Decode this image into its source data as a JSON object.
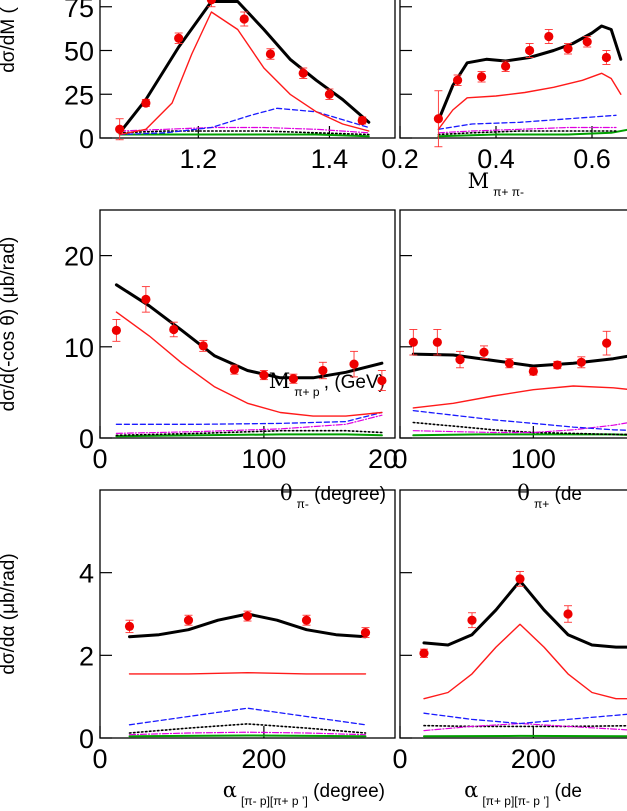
{
  "chart_data": [
    {
      "type": "line",
      "panel": "row1-left",
      "ylabel": "dσ/dM (",
      "xlabel": {
        "main": "M",
        "sub": "π+ p",
        "tail": "’,  (GeV)"
      },
      "xlim": [
        1.05,
        1.5
      ],
      "ylim": [
        0,
        80
      ],
      "xticks": [
        1.2,
        1.4
      ],
      "xtick_labels": [
        "1.2",
        "1.4"
      ],
      "yticks": [
        0,
        25,
        50,
        75
      ],
      "ytick_labels": [
        "0",
        "25",
        "50",
        "75"
      ],
      "points": {
        "x": [
          1.08,
          1.12,
          1.17,
          1.22,
          1.27,
          1.31,
          1.36,
          1.4,
          1.45
        ],
        "y": [
          5,
          20,
          57,
          79,
          68,
          48,
          37,
          25,
          10
        ],
        "err": [
          6,
          2,
          3,
          4,
          4,
          3,
          3,
          3,
          2
        ]
      },
      "curves": [
        {
          "style": "total",
          "x": [
            1.08,
            1.12,
            1.17,
            1.22,
            1.26,
            1.3,
            1.34,
            1.38,
            1.42,
            1.46
          ],
          "y": [
            3,
            22,
            52,
            78,
            78,
            62,
            45,
            33,
            22,
            9
          ]
        },
        {
          "style": "red",
          "x": [
            1.08,
            1.12,
            1.16,
            1.19,
            1.22,
            1.26,
            1.3,
            1.34,
            1.38,
            1.42,
            1.46
          ],
          "y": [
            2,
            5,
            20,
            48,
            72,
            62,
            40,
            25,
            15,
            8,
            4
          ]
        },
        {
          "style": "blue-dash",
          "x": [
            1.08,
            1.15,
            1.22,
            1.28,
            1.32,
            1.38,
            1.46
          ],
          "y": [
            2,
            3,
            6,
            13,
            17,
            15,
            6
          ]
        },
        {
          "style": "magenta-dashdot",
          "x": [
            1.08,
            1.15,
            1.22,
            1.3,
            1.38,
            1.46
          ],
          "y": [
            4,
            5,
            6,
            6,
            5,
            3
          ]
        },
        {
          "style": "black-dot",
          "x": [
            1.08,
            1.15,
            1.22,
            1.3,
            1.38,
            1.46
          ],
          "y": [
            3,
            4,
            4,
            4,
            3,
            2
          ]
        },
        {
          "style": "green",
          "x": [
            1.08,
            1.15,
            1.22,
            1.3,
            1.38,
            1.46
          ],
          "y": [
            2,
            2,
            2,
            2,
            2,
            1
          ]
        }
      ]
    },
    {
      "type": "line",
      "panel": "row1-right",
      "xlabel": {
        "main": "M",
        "sub": "π+ π-",
        "tail": ""
      },
      "xlim": [
        0.2,
        0.7
      ],
      "ylim": [
        0,
        80
      ],
      "xticks": [
        0.2,
        0.4,
        0.6
      ],
      "xtick_labels": [
        "0.2",
        "0.4",
        "0.6"
      ],
      "yticks": [
        0,
        25,
        50,
        75
      ],
      "points": {
        "x": [
          0.28,
          0.32,
          0.37,
          0.42,
          0.47,
          0.51,
          0.55,
          0.59,
          0.63
        ],
        "y": [
          11,
          33,
          35,
          41,
          50,
          58,
          51,
          55,
          46
        ],
        "err": [
          16,
          3,
          3,
          3,
          4,
          4,
          3,
          3,
          4
        ]
      },
      "curves": [
        {
          "style": "total",
          "x": [
            0.28,
            0.31,
            0.34,
            0.38,
            0.42,
            0.47,
            0.52,
            0.56,
            0.6,
            0.62,
            0.64,
            0.66
          ],
          "y": [
            10,
            30,
            43,
            45,
            44,
            46,
            50,
            54,
            60,
            64,
            62,
            45
          ]
        },
        {
          "style": "red",
          "x": [
            0.28,
            0.31,
            0.34,
            0.4,
            0.46,
            0.52,
            0.58,
            0.62,
            0.64,
            0.66
          ],
          "y": [
            5,
            16,
            23,
            24,
            26,
            29,
            33,
            37,
            34,
            25
          ]
        },
        {
          "style": "blue-dash",
          "x": [
            0.28,
            0.35,
            0.45,
            0.55,
            0.65
          ],
          "y": [
            5,
            8,
            9,
            11,
            13
          ]
        },
        {
          "style": "magenta-dashdot",
          "x": [
            0.28,
            0.35,
            0.45,
            0.55,
            0.65
          ],
          "y": [
            3,
            4,
            5,
            6,
            6
          ]
        },
        {
          "style": "black-dot",
          "x": [
            0.28,
            0.35,
            0.45,
            0.55,
            0.65
          ],
          "y": [
            2,
            3,
            4,
            4,
            4
          ]
        },
        {
          "style": "green",
          "x": [
            0.28,
            0.4,
            0.55,
            0.64,
            0.68
          ],
          "y": [
            1,
            2,
            2,
            3,
            5
          ]
        }
      ]
    },
    {
      "type": "line",
      "panel": "row2-left",
      "ylabel": "dσ/d(-cos θ) (μb/rad)",
      "xlabel": {
        "main": "θ",
        "sub": "π-",
        "tail": " (degree)"
      },
      "xlim": [
        0,
        180
      ],
      "ylim": [
        0,
        25
      ],
      "xticks": [
        0,
        100
      ],
      "xtick_labels": [
        "0",
        "100"
      ],
      "extra_xlabel": "20",
      "yticks": [
        0,
        10,
        20
      ],
      "ytick_labels": [
        "0",
        "10",
        "20"
      ],
      "points": {
        "x": [
          10,
          28,
          45,
          63,
          82,
          100,
          118,
          136,
          155,
          172
        ],
        "y": [
          11.8,
          15.2,
          11.9,
          10.1,
          7.5,
          6.9,
          6.5,
          7.4,
          8.1,
          6.3
        ],
        "err": [
          1.2,
          1.4,
          0.8,
          0.6,
          0.5,
          0.5,
          0.5,
          0.9,
          1.4,
          1.1
        ]
      },
      "curves": [
        {
          "style": "total",
          "x": [
            10,
            30,
            50,
            70,
            90,
            110,
            130,
            150,
            172
          ],
          "y": [
            16.8,
            14.5,
            11.8,
            9.0,
            7.4,
            6.6,
            6.6,
            7.2,
            8.2
          ]
        },
        {
          "style": "red",
          "x": [
            10,
            30,
            50,
            70,
            90,
            110,
            130,
            150,
            172
          ],
          "y": [
            13.8,
            11.2,
            8.2,
            5.6,
            3.8,
            2.8,
            2.4,
            2.4,
            2.8
          ]
        },
        {
          "style": "blue-dash",
          "x": [
            10,
            60,
            110,
            150,
            172
          ],
          "y": [
            1.5,
            1.5,
            1.6,
            1.8,
            2.8
          ]
        },
        {
          "style": "magenta-dashdot",
          "x": [
            10,
            60,
            110,
            150,
            172
          ],
          "y": [
            0.5,
            0.7,
            1.0,
            1.5,
            2.5
          ]
        },
        {
          "style": "black-dot",
          "x": [
            10,
            60,
            110,
            150,
            172
          ],
          "y": [
            0.3,
            0.5,
            0.8,
            0.8,
            0.6
          ]
        },
        {
          "style": "green",
          "x": [
            10,
            60,
            110,
            150,
            172
          ],
          "y": [
            0.2,
            0.3,
            0.4,
            0.4,
            0.3
          ]
        }
      ]
    },
    {
      "type": "line",
      "panel": "row2-right",
      "xlabel": {
        "main": "θ",
        "sub": "π+",
        "tail": " (de"
      },
      "xlim": [
        0,
        180
      ],
      "ylim": [
        0,
        25
      ],
      "xticks": [
        0,
        100
      ],
      "xtick_labels": [
        "0",
        "100"
      ],
      "yticks": [
        0,
        10,
        20
      ],
      "points": {
        "x": [
          10,
          28,
          45,
          63,
          82,
          100,
          118,
          136,
          155
        ],
        "y": [
          10.5,
          10.5,
          8.6,
          9.4,
          8.2,
          7.3,
          8.0,
          8.3,
          10.4
        ],
        "err": [
          1.4,
          1.4,
          0.9,
          0.7,
          0.5,
          0.4,
          0.4,
          0.6,
          1.3
        ]
      },
      "curves": [
        {
          "style": "total",
          "x": [
            10,
            40,
            70,
            100,
            130,
            160,
            180
          ],
          "y": [
            9.2,
            9.1,
            8.5,
            7.9,
            8.2,
            8.7,
            9.2
          ]
        },
        {
          "style": "red",
          "x": [
            10,
            40,
            70,
            100,
            130,
            160,
            180
          ],
          "y": [
            3.3,
            3.8,
            4.6,
            5.3,
            5.7,
            5.5,
            5.2
          ]
        },
        {
          "style": "blue-dash",
          "x": [
            10,
            40,
            70,
            100,
            130,
            160,
            180
          ],
          "y": [
            3.0,
            2.5,
            2.0,
            1.6,
            1.2,
            0.9,
            0.8
          ]
        },
        {
          "style": "black-dot",
          "x": [
            10,
            40,
            70,
            100,
            130,
            160,
            180
          ],
          "y": [
            1.7,
            1.3,
            0.9,
            0.6,
            0.5,
            0.4,
            0.4
          ]
        },
        {
          "style": "magenta-dashdot",
          "x": [
            10,
            40,
            70,
            100,
            130,
            160,
            180
          ],
          "y": [
            0.8,
            0.7,
            0.6,
            0.6,
            0.9,
            1.4,
            1.9
          ]
        },
        {
          "style": "green",
          "x": [
            10,
            60,
            110,
            160,
            180
          ],
          "y": [
            0.3,
            0.4,
            0.4,
            0.4,
            0.3
          ]
        }
      ]
    },
    {
      "type": "line",
      "panel": "row3-left",
      "ylabel": "dσ/dα (μb/rad)",
      "xlabel": {
        "main": "α",
        "sub": "[π- p][π+ p ’]",
        "tail": " (degree)"
      },
      "xlim": [
        0,
        360
      ],
      "ylim": [
        0,
        6
      ],
      "xticks": [
        0,
        200
      ],
      "xtick_labels": [
        "0",
        "200"
      ],
      "yticks": [
        0,
        2,
        4
      ],
      "ytick_labels": [
        "0",
        "2",
        "4"
      ],
      "points": {
        "x": [
          36,
          108,
          180,
          252,
          324
        ],
        "y": [
          2.7,
          2.85,
          2.95,
          2.85,
          2.55
        ],
        "err": [
          0.15,
          0.12,
          0.12,
          0.12,
          0.12
        ]
      },
      "curves": [
        {
          "style": "total",
          "x": [
            36,
            72,
            108,
            144,
            180,
            216,
            252,
            288,
            324
          ],
          "y": [
            2.45,
            2.5,
            2.62,
            2.85,
            3.0,
            2.85,
            2.62,
            2.5,
            2.45
          ]
        },
        {
          "style": "red",
          "x": [
            36,
            108,
            180,
            252,
            324
          ],
          "y": [
            1.55,
            1.55,
            1.58,
            1.55,
            1.55
          ]
        },
        {
          "style": "blue-dash",
          "x": [
            36,
            108,
            180,
            252,
            324
          ],
          "y": [
            0.32,
            0.52,
            0.72,
            0.52,
            0.32
          ]
        },
        {
          "style": "black-dot",
          "x": [
            36,
            108,
            180,
            252,
            324
          ],
          "y": [
            0.12,
            0.24,
            0.34,
            0.24,
            0.12
          ]
        },
        {
          "style": "magenta-dashdot",
          "x": [
            36,
            108,
            180,
            252,
            324
          ],
          "y": [
            0.08,
            0.12,
            0.14,
            0.12,
            0.08
          ]
        },
        {
          "style": "green",
          "x": [
            36,
            180,
            324
          ],
          "y": [
            0.04,
            0.06,
            0.04
          ]
        }
      ]
    },
    {
      "type": "line",
      "panel": "row3-right",
      "xlabel": {
        "main": "α",
        "sub": "[π+ p][π- p ’]",
        "tail": " (de"
      },
      "xlim": [
        0,
        360
      ],
      "ylim": [
        0,
        6
      ],
      "xticks": [
        0,
        200
      ],
      "xtick_labels": [
        "0",
        "200"
      ],
      "yticks": [
        0,
        2,
        4
      ],
      "points": {
        "x": [
          36,
          108,
          180,
          252
        ],
        "y": [
          2.05,
          2.85,
          3.85,
          3.0
        ],
        "err": [
          0.1,
          0.18,
          0.18,
          0.2
        ]
      },
      "curves": [
        {
          "style": "total",
          "x": [
            36,
            72,
            108,
            144,
            180,
            216,
            252,
            288,
            324,
            360
          ],
          "y": [
            2.3,
            2.25,
            2.5,
            3.1,
            3.8,
            3.1,
            2.5,
            2.25,
            2.2,
            2.2
          ]
        },
        {
          "style": "red",
          "x": [
            36,
            72,
            108,
            144,
            180,
            216,
            252,
            288,
            324,
            360
          ],
          "y": [
            0.95,
            1.1,
            1.55,
            2.2,
            2.75,
            2.2,
            1.55,
            1.1,
            0.95,
            0.95
          ]
        },
        {
          "style": "blue-dash",
          "x": [
            36,
            108,
            180,
            252,
            360
          ],
          "y": [
            0.6,
            0.45,
            0.35,
            0.45,
            0.6
          ]
        },
        {
          "style": "black-dot",
          "x": [
            36,
            108,
            180,
            252,
            360
          ],
          "y": [
            0.3,
            0.28,
            0.28,
            0.28,
            0.3
          ]
        },
        {
          "style": "magenta-dashdot",
          "x": [
            36,
            108,
            180,
            252,
            360
          ],
          "y": [
            0.18,
            0.28,
            0.35,
            0.28,
            0.18
          ]
        },
        {
          "style": "green",
          "x": [
            36,
            180,
            360
          ],
          "y": [
            0.04,
            0.05,
            0.04
          ]
        }
      ]
    }
  ]
}
